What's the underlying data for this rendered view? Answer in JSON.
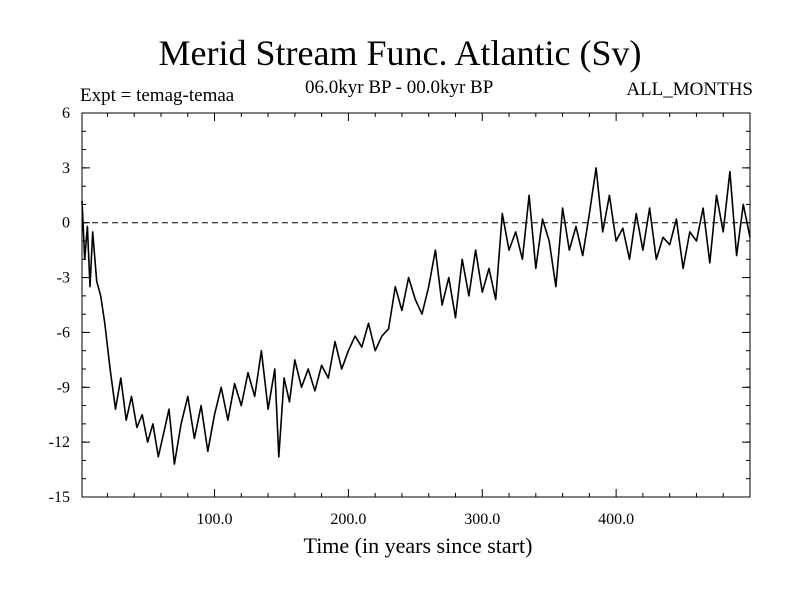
{
  "chart_data": {
    "type": "line",
    "title": "Merid Stream Func. Atlantic (Sv)",
    "subtitle_left": "Expt = temag-temaa",
    "subtitle_center": "06.0kyr BP - 00.0kyr BP",
    "subtitle_right": "ALL_MONTHS",
    "xlabel": "Time (in years since start)",
    "ylabel": "",
    "xlim": [
      1,
      500
    ],
    "ylim": [
      -15,
      6
    ],
    "xticks": [
      100,
      200,
      300,
      400
    ],
    "xtick_labels": [
      "100.0",
      "200.0",
      "300.0",
      "400.0"
    ],
    "yticks": [
      6,
      3,
      0,
      -3,
      -6,
      -9,
      -12,
      -15
    ],
    "ytick_labels": [
      "6",
      "3",
      "0",
      "-3",
      "-6",
      "-9",
      "-12",
      "-15"
    ],
    "reference_line": 0,
    "series": [
      {
        "name": "temag-temaa",
        "x": [
          1,
          3,
          5,
          7,
          9,
          12,
          15,
          18,
          22,
          26,
          30,
          34,
          38,
          42,
          46,
          50,
          54,
          58,
          62,
          66,
          70,
          75,
          80,
          85,
          90,
          95,
          100,
          105,
          110,
          115,
          120,
          125,
          130,
          135,
          140,
          145,
          148,
          152,
          156,
          160,
          165,
          170,
          175,
          180,
          185,
          190,
          195,
          200,
          205,
          210,
          215,
          220,
          225,
          230,
          235,
          240,
          245,
          250,
          255,
          260,
          265,
          270,
          275,
          280,
          285,
          290,
          295,
          300,
          305,
          310,
          315,
          320,
          325,
          330,
          335,
          340,
          345,
          350,
          355,
          360,
          365,
          370,
          375,
          380,
          385,
          390,
          395,
          400,
          405,
          410,
          415,
          420,
          425,
          430,
          435,
          440,
          445,
          450,
          455,
          460,
          465,
          470,
          475,
          480,
          485,
          490,
          495,
          500
        ],
        "values": [
          1.2,
          -2.0,
          -0.2,
          -3.5,
          -0.5,
          -3.2,
          -4.0,
          -5.5,
          -8.0,
          -10.2,
          -8.5,
          -10.8,
          -9.5,
          -11.2,
          -10.5,
          -12.0,
          -11.0,
          -12.8,
          -11.5,
          -10.2,
          -13.2,
          -11.0,
          -9.5,
          -11.8,
          -10.0,
          -12.5,
          -10.5,
          -9.0,
          -10.8,
          -8.8,
          -10.0,
          -8.2,
          -9.5,
          -7.0,
          -10.2,
          -8.0,
          -12.8,
          -8.5,
          -9.8,
          -7.5,
          -9.0,
          -8.0,
          -9.2,
          -7.8,
          -8.5,
          -6.5,
          -8.0,
          -7.0,
          -6.2,
          -6.8,
          -5.5,
          -7.0,
          -6.2,
          -5.8,
          -3.5,
          -4.8,
          -3.0,
          -4.2,
          -5.0,
          -3.5,
          -1.5,
          -4.5,
          -3.0,
          -5.2,
          -2.0,
          -4.0,
          -1.5,
          -3.8,
          -2.5,
          -4.2,
          0.5,
          -1.5,
          -0.5,
          -2.0,
          1.5,
          -2.5,
          0.2,
          -1.0,
          -3.5,
          0.8,
          -1.5,
          -0.2,
          -1.8,
          0.5,
          3.0,
          -0.5,
          1.5,
          -1.0,
          -0.3,
          -2.0,
          0.5,
          -1.5,
          0.8,
          -2.0,
          -0.8,
          -1.2,
          0.2,
          -2.5,
          -0.5,
          -1.0,
          0.8,
          -2.2,
          1.5,
          -0.5,
          2.8,
          -1.8,
          1.0,
          -0.8
        ]
      }
    ]
  }
}
